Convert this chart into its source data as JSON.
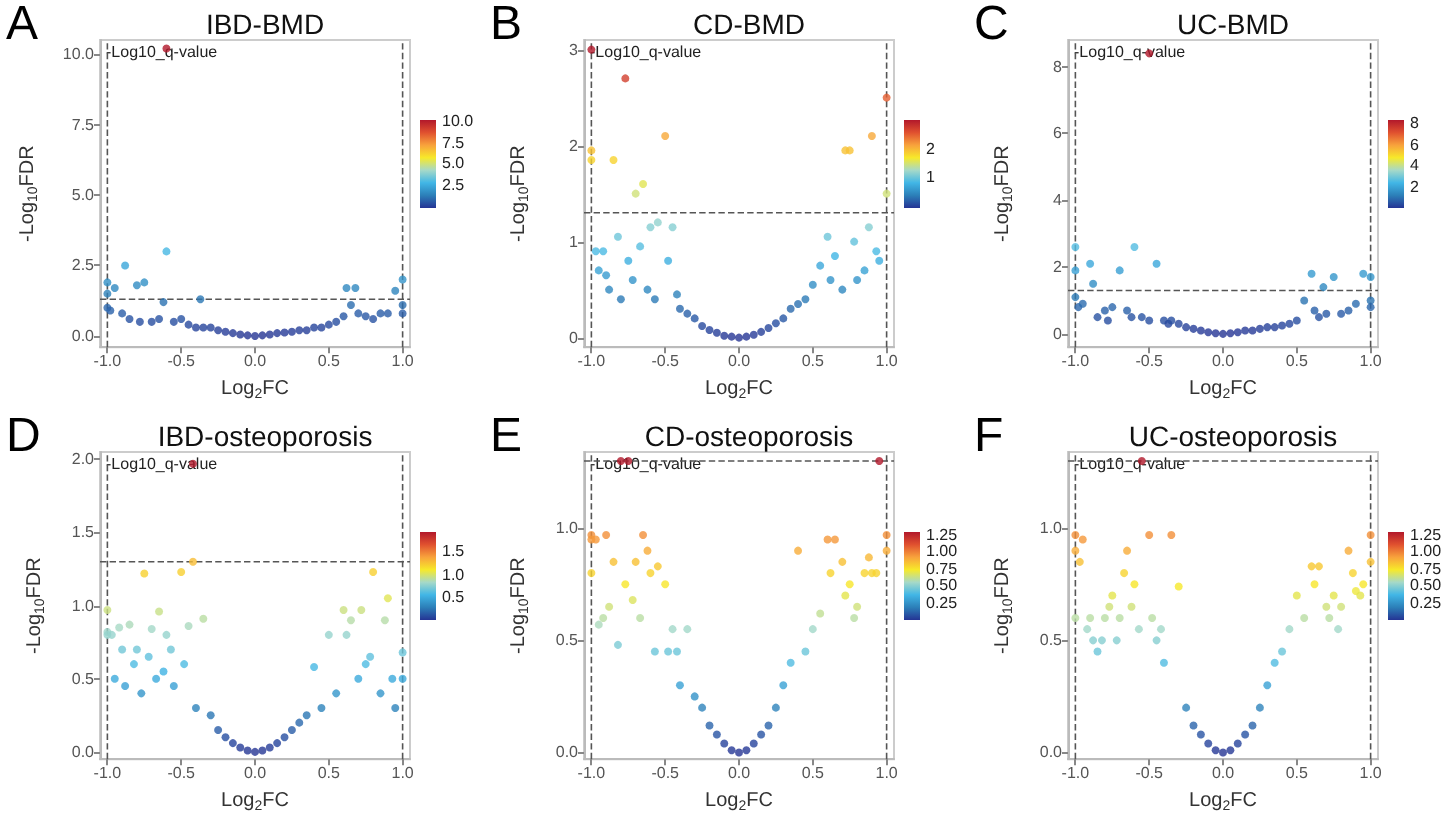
{
  "chart_data": [
    {
      "type": "scatter",
      "title": "IBD-BMD",
      "annotations": [
        "A"
      ],
      "xlabel": "Log$_{2}$FC",
      "ylabel": "-Log$_{10}$FDR",
      "clabel": "-Log10_q-value",
      "grid": false,
      "marker": "circle",
      "xlim": [
        -1.05,
        1.05
      ],
      "xticks": [
        {
          "value": -1,
          "label": "-1.0"
        },
        {
          "value": -0.5,
          "label": "-0.5"
        },
        {
          "value": 0,
          "label": "0.0"
        },
        {
          "value": 0.5,
          "label": "0.5"
        },
        {
          "value": 1,
          "label": "1.0"
        }
      ],
      "ylim": [
        -0.4,
        10.5
      ],
      "yticks": [
        {
          "value": 0,
          "label": "0.0"
        },
        {
          "value": 2.5,
          "label": "2.5"
        },
        {
          "value": 5,
          "label": "5.0"
        },
        {
          "value": 7.5,
          "label": "7.5"
        },
        {
          "value": 10,
          "label": "10.0"
        }
      ],
      "clim": [
        0,
        10.2
      ],
      "cticks": [
        {
          "value": 2.5,
          "label": "2.5"
        },
        {
          "value": 5,
          "label": "5.0"
        },
        {
          "value": 7.5,
          "label": "7.5"
        },
        {
          "value": 10,
          "label": "10.0"
        }
      ],
      "ref_lines": [
        {
          "axis": "x",
          "value": -1,
          "line_style": "dashed"
        },
        {
          "axis": "x",
          "value": 1,
          "line_style": "dashed"
        },
        {
          "axis": "y",
          "value": 1.3,
          "line_style": "dashed"
        }
      ],
      "x": [
        -1,
        -1,
        -1,
        -0.98,
        -0.95,
        -0.9,
        -0.88,
        -0.85,
        -0.8,
        -0.78,
        -0.75,
        -0.7,
        -0.65,
        -0.62,
        -0.6,
        -0.55,
        -0.5,
        -0.45,
        -0.4,
        -0.37,
        -0.35,
        -0.3,
        -0.25,
        -0.2,
        -0.15,
        -0.1,
        -0.05,
        0,
        0.05,
        0.1,
        0.15,
        0.2,
        0.25,
        0.3,
        0.35,
        0.4,
        0.45,
        0.5,
        0.55,
        0.6,
        0.62,
        0.65,
        0.68,
        0.7,
        0.75,
        0.8,
        0.85,
        0.9,
        0.95,
        1,
        1,
        1,
        -0.6
      ],
      "values": [
        1.9,
        1.5,
        1.0,
        0.9,
        1.7,
        0.8,
        2.5,
        0.6,
        1.8,
        0.5,
        1.9,
        0.5,
        0.6,
        1.2,
        3.0,
        0.5,
        0.6,
        0.4,
        0.3,
        1.3,
        0.3,
        0.3,
        0.2,
        0.15,
        0.1,
        0.05,
        0.02,
        0,
        0.02,
        0.05,
        0.1,
        0.12,
        0.15,
        0.2,
        0.2,
        0.3,
        0.3,
        0.4,
        0.5,
        0.7,
        1.7,
        1.1,
        1.7,
        0.8,
        0.7,
        0.6,
        0.8,
        0.8,
        1.6,
        2.0,
        1.1,
        0.8,
        10.2
      ],
      "cvalues": [
        1.9,
        1.5,
        1.0,
        0.9,
        1.7,
        0.8,
        2.5,
        0.6,
        1.8,
        0.5,
        1.9,
        0.5,
        0.6,
        1.2,
        3.0,
        0.5,
        0.6,
        0.4,
        0.3,
        1.3,
        0.3,
        0.3,
        0.2,
        0.15,
        0.1,
        0.05,
        0.02,
        0,
        0.02,
        0.05,
        0.1,
        0.12,
        0.15,
        0.2,
        0.2,
        0.3,
        0.3,
        0.4,
        0.5,
        0.7,
        1.7,
        1.1,
        1.7,
        0.8,
        0.7,
        0.6,
        0.8,
        0.8,
        1.6,
        2.0,
        1.1,
        0.8,
        10.2
      ]
    },
    {
      "type": "scatter",
      "title": "CD-BMD",
      "annotations": [
        "B"
      ],
      "xlabel": "Log$_{2}$FC",
      "ylabel": "-Log$_{10}$FDR",
      "clabel": "-Log10_q-value",
      "grid": false,
      "marker": "circle",
      "xlim": [
        -1.05,
        1.05
      ],
      "xticks": [
        {
          "value": -1,
          "label": "-1.0"
        },
        {
          "value": -0.5,
          "label": "-0.5"
        },
        {
          "value": 0,
          "label": "0.0"
        },
        {
          "value": 0.5,
          "label": "0.5"
        },
        {
          "value": 1,
          "label": "1.0"
        }
      ],
      "ylim": [
        -0.1,
        3.1
      ],
      "yticks": [
        0,
        1,
        2,
        3
      ],
      "clim": [
        0,
        3
      ],
      "cticks": [
        1,
        2
      ],
      "ref_lines": [
        {
          "axis": "x",
          "value": -1,
          "line_style": "dashed"
        },
        {
          "axis": "x",
          "value": 1,
          "line_style": "dashed"
        },
        {
          "axis": "y",
          "value": 1.3,
          "line_style": "dashed"
        }
      ],
      "x": [
        -1,
        -1,
        -1,
        -0.97,
        -0.95,
        -0.92,
        -0.9,
        -0.88,
        -0.85,
        -0.82,
        -0.8,
        -0.77,
        -0.75,
        -0.72,
        -0.7,
        -0.67,
        -0.65,
        -0.62,
        -0.6,
        -0.57,
        -0.55,
        -0.5,
        -0.48,
        -0.45,
        -0.42,
        -0.4,
        -0.35,
        -0.3,
        -0.25,
        -0.2,
        -0.15,
        -0.1,
        -0.05,
        0,
        0.05,
        0.1,
        0.15,
        0.2,
        0.25,
        0.3,
        0.35,
        0.4,
        0.45,
        0.5,
        0.55,
        0.6,
        0.62,
        0.65,
        0.7,
        0.72,
        0.75,
        0.78,
        0.8,
        0.85,
        0.88,
        0.9,
        0.93,
        0.95,
        1,
        1
      ],
      "values": [
        3.0,
        1.95,
        1.85,
        0.9,
        0.7,
        0.9,
        0.65,
        0.5,
        1.85,
        1.05,
        0.4,
        2.7,
        0.8,
        0.6,
        1.5,
        0.95,
        1.6,
        0.5,
        1.15,
        0.4,
        1.2,
        2.1,
        0.8,
        1.15,
        0.45,
        0.3,
        0.25,
        0.2,
        0.12,
        0.08,
        0.05,
        0.02,
        0.01,
        0,
        0.01,
        0.03,
        0.06,
        0.1,
        0.15,
        0.2,
        0.3,
        0.35,
        0.4,
        0.55,
        0.75,
        1.05,
        0.6,
        0.85,
        0.5,
        1.95,
        1.95,
        1.0,
        0.6,
        0.7,
        1.15,
        2.1,
        0.9,
        0.8,
        2.5,
        1.5
      ],
      "cvalues": [
        3.0,
        1.95,
        1.85,
        0.9,
        0.7,
        0.9,
        0.65,
        0.5,
        1.85,
        1.05,
        0.4,
        2.7,
        0.8,
        0.6,
        1.5,
        0.95,
        1.6,
        0.5,
        1.15,
        0.4,
        1.2,
        2.1,
        0.8,
        1.15,
        0.45,
        0.3,
        0.25,
        0.2,
        0.12,
        0.08,
        0.05,
        0.02,
        0.01,
        0,
        0.01,
        0.03,
        0.06,
        0.1,
        0.15,
        0.2,
        0.3,
        0.35,
        0.4,
        0.55,
        0.75,
        1.05,
        0.6,
        0.85,
        0.5,
        1.95,
        1.95,
        1.0,
        0.6,
        0.7,
        1.15,
        2.1,
        0.9,
        0.8,
        2.5,
        1.5
      ]
    },
    {
      "type": "scatter",
      "title": "UC-BMD",
      "annotations": [
        "C"
      ],
      "xlabel": "Log$_{2}$FC",
      "ylabel": "-Log$_{10}$FDR",
      "clabel": "-Log10_q-value",
      "grid": false,
      "marker": "circle",
      "xlim": [
        -1.05,
        1.05
      ],
      "xticks": [
        {
          "value": -1,
          "label": "-1.0"
        },
        {
          "value": -0.5,
          "label": "-0.5"
        },
        {
          "value": 0,
          "label": "0.0"
        },
        {
          "value": 0.5,
          "label": "0.5"
        },
        {
          "value": 1,
          "label": "1.0"
        }
      ],
      "ylim": [
        -0.4,
        8.8
      ],
      "yticks": [
        0,
        2,
        4,
        6,
        8
      ],
      "clim": [
        0,
        8.4
      ],
      "cticks": [
        2,
        4,
        6,
        8
      ],
      "ref_lines": [
        {
          "axis": "x",
          "value": -1,
          "line_style": "dashed"
        },
        {
          "axis": "x",
          "value": 1,
          "line_style": "dashed"
        },
        {
          "axis": "y",
          "value": 1.3,
          "line_style": "dashed"
        }
      ],
      "x": [
        -1,
        -1,
        -1,
        -0.98,
        -0.95,
        -0.9,
        -0.88,
        -0.85,
        -0.8,
        -0.78,
        -0.75,
        -0.7,
        -0.65,
        -0.62,
        -0.6,
        -0.55,
        -0.5,
        -0.45,
        -0.4,
        -0.37,
        -0.35,
        -0.3,
        -0.25,
        -0.2,
        -0.15,
        -0.1,
        -0.05,
        0,
        0.05,
        0.1,
        0.15,
        0.2,
        0.25,
        0.3,
        0.35,
        0.4,
        0.45,
        0.5,
        0.55,
        0.6,
        0.62,
        0.65,
        0.68,
        0.7,
        0.75,
        0.8,
        0.85,
        0.9,
        0.95,
        1,
        1,
        1,
        -0.5
      ],
      "values": [
        2.6,
        1.9,
        1.1,
        0.8,
        0.9,
        2.1,
        1.5,
        0.5,
        0.7,
        0.4,
        0.8,
        1.9,
        0.7,
        0.5,
        2.6,
        0.5,
        0.4,
        2.1,
        0.4,
        0.3,
        0.4,
        0.3,
        0.2,
        0.15,
        0.1,
        0.05,
        0.02,
        0,
        0.02,
        0.05,
        0.1,
        0.1,
        0.15,
        0.2,
        0.2,
        0.25,
        0.3,
        0.4,
        1.0,
        1.8,
        0.7,
        0.5,
        1.4,
        0.6,
        1.7,
        0.6,
        0.7,
        0.9,
        1.8,
        1.7,
        1.0,
        0.8,
        8.4
      ],
      "cvalues": [
        2.6,
        1.9,
        1.1,
        0.8,
        0.9,
        2.1,
        1.5,
        0.5,
        0.7,
        0.4,
        0.8,
        1.9,
        0.7,
        0.5,
        2.6,
        0.5,
        0.4,
        2.1,
        0.4,
        0.3,
        0.4,
        0.3,
        0.2,
        0.15,
        0.1,
        0.05,
        0.02,
        0,
        0.02,
        0.05,
        0.1,
        0.1,
        0.15,
        0.2,
        0.2,
        0.25,
        0.3,
        0.4,
        1.0,
        1.8,
        0.7,
        0.5,
        1.4,
        0.6,
        1.7,
        0.6,
        0.7,
        0.9,
        1.8,
        1.7,
        1.0,
        0.8,
        8.4
      ]
    },
    {
      "type": "scatter",
      "title": "IBD-osteoporosis",
      "annotations": [
        "D"
      ],
      "xlabel": "Log$_{2}$FC",
      "ylabel": "-Log$_{10}$FDR",
      "clabel": "-Log10_q-value",
      "grid": false,
      "marker": "circle",
      "xlim": [
        -1.05,
        1.05
      ],
      "xticks": [
        {
          "value": -1,
          "label": "-1.0"
        },
        {
          "value": -0.5,
          "label": "-0.5"
        },
        {
          "value": 0,
          "label": "0.0"
        },
        {
          "value": 0.5,
          "label": "0.5"
        },
        {
          "value": 1,
          "label": "1.0"
        }
      ],
      "ylim": [
        -0.05,
        2.05
      ],
      "yticks": [
        {
          "value": 0,
          "label": "0.0"
        },
        {
          "value": 0.5,
          "label": "0.5"
        },
        {
          "value": 1,
          "label": "1.0"
        },
        {
          "value": 1.5,
          "label": "1.5"
        },
        {
          "value": 2,
          "label": "2.0"
        }
      ],
      "clim": [
        0,
        1.97
      ],
      "cticks": [
        {
          "value": 0.5,
          "label": "0.5"
        },
        {
          "value": 1,
          "label": "1.0"
        },
        {
          "value": 1.5,
          "label": "1.5"
        }
      ],
      "ref_lines": [
        {
          "axis": "x",
          "value": -1,
          "line_style": "dashed"
        },
        {
          "axis": "x",
          "value": 1,
          "line_style": "dashed"
        },
        {
          "axis": "y",
          "value": 1.3,
          "line_style": "dashed"
        }
      ],
      "x": [
        -1,
        -1,
        -1,
        -0.97,
        -0.95,
        -0.92,
        -0.9,
        -0.88,
        -0.85,
        -0.82,
        -0.8,
        -0.77,
        -0.75,
        -0.72,
        -0.7,
        -0.67,
        -0.65,
        -0.62,
        -0.6,
        -0.57,
        -0.55,
        -0.5,
        -0.48,
        -0.45,
        -0.42,
        -0.4,
        -0.35,
        -0.3,
        -0.25,
        -0.2,
        -0.15,
        -0.1,
        -0.05,
        0,
        0.05,
        0.1,
        0.15,
        0.2,
        0.25,
        0.3,
        0.35,
        0.4,
        0.45,
        0.5,
        0.55,
        0.6,
        0.62,
        0.65,
        0.7,
        0.72,
        0.75,
        0.78,
        0.8,
        0.85,
        0.88,
        0.9,
        0.93,
        0.95,
        1,
        1,
        -0.42
      ],
      "values": [
        0.97,
        0.82,
        0.8,
        0.8,
        0.5,
        0.85,
        0.7,
        0.45,
        0.87,
        0.6,
        0.7,
        0.4,
        1.22,
        0.65,
        0.84,
        0.5,
        0.96,
        0.55,
        0.8,
        0.7,
        0.45,
        1.23,
        0.6,
        0.86,
        1.3,
        0.3,
        0.91,
        0.25,
        0.15,
        0.1,
        0.06,
        0.03,
        0.01,
        0,
        0.01,
        0.03,
        0.06,
        0.1,
        0.15,
        0.2,
        0.25,
        0.58,
        0.3,
        0.8,
        0.4,
        0.97,
        0.8,
        0.9,
        0.5,
        0.97,
        0.6,
        0.65,
        1.23,
        0.4,
        0.9,
        1.05,
        0.5,
        0.3,
        0.68,
        0.5,
        1.97
      ],
      "cvalues": [
        0.97,
        0.82,
        0.8,
        0.8,
        0.5,
        0.85,
        0.7,
        0.45,
        0.87,
        0.6,
        0.7,
        0.4,
        1.22,
        0.65,
        0.84,
        0.5,
        0.96,
        0.55,
        0.8,
        0.7,
        0.45,
        1.23,
        0.6,
        0.86,
        1.3,
        0.3,
        0.91,
        0.25,
        0.15,
        0.1,
        0.06,
        0.03,
        0.01,
        0,
        0.01,
        0.03,
        0.06,
        0.1,
        0.15,
        0.2,
        0.25,
        0.58,
        0.3,
        0.8,
        0.4,
        0.97,
        0.8,
        0.9,
        0.5,
        0.97,
        0.6,
        0.65,
        1.23,
        0.4,
        0.9,
        1.05,
        0.5,
        0.3,
        0.68,
        0.5,
        1.97
      ]
    },
    {
      "type": "scatter",
      "title": "CD-osteoporosis",
      "annotations": [
        "E"
      ],
      "xlabel": "Log$_{2}$FC",
      "ylabel": "-Log$_{10}$FDR",
      "clabel": "-Log10_q-value",
      "grid": false,
      "marker": "circle",
      "xlim": [
        -1.05,
        1.05
      ],
      "xticks": [
        {
          "value": -1,
          "label": "-1.0"
        },
        {
          "value": -0.5,
          "label": "-0.5"
        },
        {
          "value": 0,
          "label": "0.0"
        },
        {
          "value": 0.5,
          "label": "0.5"
        },
        {
          "value": 1,
          "label": "1.0"
        }
      ],
      "ylim": [
        -0.03,
        1.34
      ],
      "yticks": [
        {
          "value": 0,
          "label": "0.0"
        },
        {
          "value": 0.5,
          "label": "0.5"
        },
        {
          "value": 1,
          "label": "1.0"
        }
      ],
      "clim": [
        0,
        1.3
      ],
      "cticks": [
        {
          "value": 0.25,
          "label": "0.25"
        },
        {
          "value": 0.5,
          "label": "0.50"
        },
        {
          "value": 0.75,
          "label": "0.75"
        },
        {
          "value": 1,
          "label": "1.00"
        },
        {
          "value": 1.25,
          "label": "1.25"
        }
      ],
      "ref_lines": [
        {
          "axis": "x",
          "value": -1,
          "line_style": "dashed"
        },
        {
          "axis": "x",
          "value": 1,
          "line_style": "dashed"
        },
        {
          "axis": "y",
          "value": 1.3,
          "line_style": "dashed"
        }
      ],
      "x": [
        -1,
        -1,
        -1,
        -0.97,
        -0.95,
        -0.92,
        -0.9,
        -0.88,
        -0.85,
        -0.82,
        -0.8,
        -0.77,
        -0.75,
        -0.72,
        -0.7,
        -0.67,
        -0.65,
        -0.62,
        -0.6,
        -0.57,
        -0.55,
        -0.5,
        -0.48,
        -0.45,
        -0.42,
        -0.4,
        -0.35,
        -0.3,
        -0.25,
        -0.2,
        -0.15,
        -0.1,
        -0.05,
        0,
        0.05,
        0.1,
        0.15,
        0.2,
        0.25,
        0.3,
        0.35,
        0.4,
        0.45,
        0.5,
        0.55,
        0.6,
        0.62,
        0.65,
        0.7,
        0.72,
        0.75,
        0.78,
        0.8,
        0.85,
        0.88,
        0.9,
        0.93,
        0.95,
        1,
        1
      ],
      "values": [
        0.97,
        0.95,
        0.8,
        0.95,
        0.57,
        0.6,
        0.97,
        0.65,
        0.85,
        0.48,
        1.3,
        0.75,
        1.3,
        0.68,
        0.85,
        0.6,
        0.97,
        0.9,
        0.8,
        0.45,
        0.83,
        0.75,
        0.45,
        0.55,
        0.45,
        0.3,
        0.55,
        0.25,
        0.2,
        0.12,
        0.08,
        0.04,
        0.01,
        0,
        0.01,
        0.04,
        0.08,
        0.12,
        0.2,
        0.3,
        0.4,
        0.9,
        0.45,
        0.55,
        0.62,
        0.95,
        0.8,
        0.95,
        0.85,
        0.7,
        0.75,
        0.6,
        0.65,
        0.8,
        0.87,
        0.8,
        0.8,
        1.3,
        0.97,
        0.9
      ],
      "cvalues": [
        0.97,
        0.95,
        0.8,
        0.95,
        0.57,
        0.6,
        0.97,
        0.65,
        0.85,
        0.48,
        1.3,
        0.75,
        1.3,
        0.68,
        0.85,
        0.6,
        0.97,
        0.9,
        0.8,
        0.45,
        0.83,
        0.75,
        0.45,
        0.55,
        0.45,
        0.3,
        0.55,
        0.25,
        0.2,
        0.12,
        0.08,
        0.04,
        0.01,
        0,
        0.01,
        0.04,
        0.08,
        0.12,
        0.2,
        0.3,
        0.4,
        0.9,
        0.45,
        0.55,
        0.62,
        0.95,
        0.8,
        0.95,
        0.85,
        0.7,
        0.75,
        0.6,
        0.65,
        0.8,
        0.87,
        0.8,
        0.8,
        1.3,
        0.97,
        0.9
      ]
    },
    {
      "type": "scatter",
      "title": "UC-osteoporosis",
      "annotations": [
        "F"
      ],
      "xlabel": "Log$_{2}$FC",
      "ylabel": "-Log$_{10}$FDR",
      "clabel": "-Log10_q-value",
      "grid": false,
      "marker": "circle",
      "xlim": [
        -1.05,
        1.05
      ],
      "xticks": [
        {
          "value": -1,
          "label": "-1.0"
        },
        {
          "value": -0.5,
          "label": "-0.5"
        },
        {
          "value": 0,
          "label": "0.0"
        },
        {
          "value": 0.5,
          "label": "0.5"
        },
        {
          "value": 1,
          "label": "1.0"
        }
      ],
      "ylim": [
        -0.03,
        1.34
      ],
      "yticks": [
        {
          "value": 0,
          "label": "0.0"
        },
        {
          "value": 0.5,
          "label": "0.5"
        },
        {
          "value": 1,
          "label": "1.0"
        }
      ],
      "clim": [
        0,
        1.3
      ],
      "cticks": [
        {
          "value": 0.25,
          "label": "0.25"
        },
        {
          "value": 0.5,
          "label": "0.50"
        },
        {
          "value": 0.75,
          "label": "0.75"
        },
        {
          "value": 1,
          "label": "1.00"
        },
        {
          "value": 1.25,
          "label": "1.25"
        }
      ],
      "ref_lines": [
        {
          "axis": "x",
          "value": -1,
          "line_style": "dashed"
        },
        {
          "axis": "x",
          "value": 1,
          "line_style": "dashed"
        },
        {
          "axis": "y",
          "value": 1.3,
          "line_style": "dashed"
        }
      ],
      "x": [
        -1,
        -1,
        -1,
        -0.97,
        -0.95,
        -0.92,
        -0.9,
        -0.88,
        -0.85,
        -0.82,
        -0.8,
        -0.77,
        -0.75,
        -0.72,
        -0.7,
        -0.67,
        -0.65,
        -0.62,
        -0.6,
        -0.57,
        -0.55,
        -0.5,
        -0.48,
        -0.45,
        -0.42,
        -0.4,
        -0.35,
        -0.3,
        -0.25,
        -0.2,
        -0.15,
        -0.1,
        -0.05,
        0,
        0.05,
        0.1,
        0.15,
        0.2,
        0.25,
        0.3,
        0.35,
        0.4,
        0.45,
        0.5,
        0.55,
        0.6,
        0.62,
        0.65,
        0.7,
        0.72,
        0.75,
        0.78,
        0.8,
        0.85,
        0.88,
        0.9,
        0.93,
        0.95,
        1,
        1
      ],
      "values": [
        0.97,
        0.9,
        0.6,
        0.85,
        0.95,
        0.55,
        0.6,
        0.5,
        0.45,
        0.5,
        0.6,
        0.65,
        0.7,
        0.5,
        0.6,
        0.8,
        0.9,
        0.65,
        0.75,
        0.55,
        1.3,
        0.97,
        0.6,
        0.5,
        0.55,
        0.4,
        0.97,
        0.74,
        0.2,
        0.12,
        0.08,
        0.04,
        0.01,
        0,
        0.01,
        0.04,
        0.08,
        0.12,
        0.2,
        0.3,
        0.4,
        0.45,
        0.55,
        0.7,
        0.6,
        0.83,
        0.75,
        0.83,
        0.65,
        0.6,
        0.7,
        0.55,
        0.65,
        0.9,
        0.8,
        0.72,
        0.7,
        0.75,
        0.97,
        0.85
      ],
      "cvalues": [
        0.97,
        0.9,
        0.6,
        0.85,
        0.95,
        0.55,
        0.6,
        0.5,
        0.45,
        0.5,
        0.6,
        0.65,
        0.7,
        0.5,
        0.6,
        0.8,
        0.9,
        0.65,
        0.75,
        0.55,
        1.3,
        0.97,
        0.6,
        0.5,
        0.55,
        0.4,
        0.97,
        0.74,
        0.2,
        0.12,
        0.08,
        0.04,
        0.01,
        0,
        0.01,
        0.04,
        0.08,
        0.12,
        0.2,
        0.3,
        0.4,
        0.45,
        0.55,
        0.7,
        0.6,
        0.83,
        0.75,
        0.83,
        0.65,
        0.6,
        0.7,
        0.55,
        0.65,
        0.9,
        0.8,
        0.72,
        0.7,
        0.75,
        0.97,
        0.85
      ]
    }
  ]
}
